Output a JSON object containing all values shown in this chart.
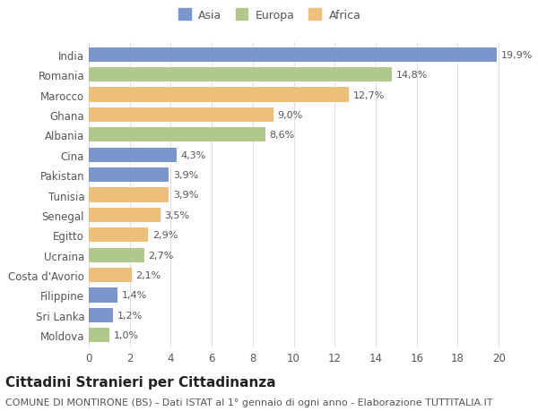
{
  "categories": [
    "India",
    "Romania",
    "Marocco",
    "Ghana",
    "Albania",
    "Cina",
    "Pakistan",
    "Tunisia",
    "Senegal",
    "Egitto",
    "Ucraina",
    "Costa d'Avorio",
    "Filippine",
    "Sri Lanka",
    "Moldova"
  ],
  "values": [
    19.9,
    14.8,
    12.7,
    9.0,
    8.6,
    4.3,
    3.9,
    3.9,
    3.5,
    2.9,
    2.7,
    2.1,
    1.4,
    1.2,
    1.0
  ],
  "labels": [
    "19,9%",
    "14,8%",
    "12,7%",
    "9,0%",
    "8,6%",
    "4,3%",
    "3,9%",
    "3,9%",
    "3,5%",
    "2,9%",
    "2,7%",
    "2,1%",
    "1,4%",
    "1,2%",
    "1,0%"
  ],
  "continents": [
    "Asia",
    "Europa",
    "Africa",
    "Africa",
    "Europa",
    "Asia",
    "Asia",
    "Africa",
    "Africa",
    "Africa",
    "Europa",
    "Africa",
    "Asia",
    "Asia",
    "Europa"
  ],
  "colors": {
    "Asia": "#7b96cc",
    "Europa": "#b0c98a",
    "Africa": "#ecc07a"
  },
  "legend_labels": [
    "Asia",
    "Europa",
    "Africa"
  ],
  "title": "Cittadini Stranieri per Cittadinanza",
  "subtitle": "COMUNE DI MONTIRONE (BS) - Dati ISTAT al 1° gennaio di ogni anno - Elaborazione TUTTITALIA.IT",
  "xlim": [
    0,
    21
  ],
  "xticks": [
    0,
    2,
    4,
    6,
    8,
    10,
    12,
    14,
    16,
    18,
    20
  ],
  "background_color": "#ffffff",
  "grid_color": "#e0e0e0",
  "bar_height": 0.72,
  "title_fontsize": 11,
  "subtitle_fontsize": 8,
  "tick_fontsize": 8.5,
  "label_fontsize": 8
}
